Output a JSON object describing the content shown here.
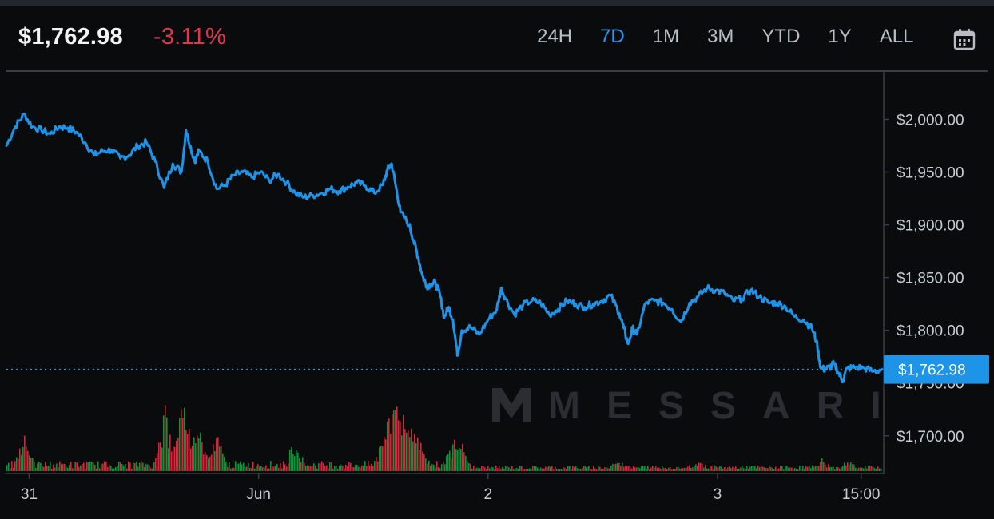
{
  "header": {
    "price": "$1,762.98",
    "change": "-3.11%",
    "change_color": "#e0364c",
    "ranges": [
      "24H",
      "7D",
      "1M",
      "3M",
      "YTD",
      "1Y",
      "ALL"
    ],
    "active_range": "7D",
    "calendar_icon": "calendar-icon"
  },
  "watermark": "MESSARI",
  "chart_data": {
    "type": "line",
    "line_color": "#1e94e8",
    "ylim": [
      1665,
      2045
    ],
    "y_ticks": [
      2000,
      1950,
      1900,
      1850,
      1800,
      1750,
      1700
    ],
    "y_tick_labels": [
      "$2,000.00",
      "$1,950.00",
      "$1,900.00",
      "$1,850.00",
      "$1,800.00",
      "$1,750.00",
      "$1,700.00"
    ],
    "current_price": 1762.98,
    "current_price_label": "$1,762.98",
    "x_tick_labels": [
      {
        "label": "31",
        "t": 0.026
      },
      {
        "label": "Jun",
        "t": 0.288
      },
      {
        "label": "2",
        "t": 0.55
      },
      {
        "label": "3",
        "t": 0.812
      },
      {
        "label": "15:00",
        "t": 0.976
      }
    ],
    "series": [
      {
        "values": [
          [
            0.0,
            1975
          ],
          [
            0.01,
            1993
          ],
          [
            0.02,
            2005
          ],
          [
            0.03,
            1993
          ],
          [
            0.04,
            1990
          ],
          [
            0.05,
            1986
          ],
          [
            0.06,
            1993
          ],
          [
            0.07,
            1992
          ],
          [
            0.08,
            1988
          ],
          [
            0.09,
            1978
          ],
          [
            0.1,
            1966
          ],
          [
            0.11,
            1970
          ],
          [
            0.12,
            1971
          ],
          [
            0.13,
            1963
          ],
          [
            0.14,
            1966
          ],
          [
            0.15,
            1975
          ],
          [
            0.16,
            1978
          ],
          [
            0.17,
            1960
          ],
          [
            0.18,
            1935
          ],
          [
            0.19,
            1958
          ],
          [
            0.2,
            1950
          ],
          [
            0.205,
            1990
          ],
          [
            0.21,
            1975
          ],
          [
            0.215,
            1960
          ],
          [
            0.22,
            1970
          ],
          [
            0.23,
            1960
          ],
          [
            0.24,
            1934
          ],
          [
            0.25,
            1938
          ],
          [
            0.26,
            1947
          ],
          [
            0.27,
            1950
          ],
          [
            0.28,
            1945
          ],
          [
            0.29,
            1950
          ],
          [
            0.3,
            1942
          ],
          [
            0.31,
            1948
          ],
          [
            0.32,
            1940
          ],
          [
            0.33,
            1930
          ],
          [
            0.34,
            1926
          ],
          [
            0.35,
            1928
          ],
          [
            0.36,
            1930
          ],
          [
            0.37,
            1934
          ],
          [
            0.38,
            1932
          ],
          [
            0.39,
            1936
          ],
          [
            0.4,
            1940
          ],
          [
            0.41,
            1937
          ],
          [
            0.42,
            1930
          ],
          [
            0.43,
            1938
          ],
          [
            0.435,
            1952
          ],
          [
            0.44,
            1958
          ],
          [
            0.445,
            1935
          ],
          [
            0.45,
            1912
          ],
          [
            0.46,
            1900
          ],
          [
            0.465,
            1885
          ],
          [
            0.47,
            1870
          ],
          [
            0.475,
            1852
          ],
          [
            0.48,
            1842
          ],
          [
            0.485,
            1844
          ],
          [
            0.49,
            1845
          ],
          [
            0.495,
            1834
          ],
          [
            0.5,
            1812
          ],
          [
            0.505,
            1822
          ],
          [
            0.51,
            1810
          ],
          [
            0.515,
            1776
          ],
          [
            0.52,
            1800
          ],
          [
            0.53,
            1803
          ],
          [
            0.54,
            1796
          ],
          [
            0.55,
            1810
          ],
          [
            0.56,
            1820
          ],
          [
            0.565,
            1840
          ],
          [
            0.57,
            1830
          ],
          [
            0.58,
            1815
          ],
          [
            0.59,
            1824
          ],
          [
            0.6,
            1828
          ],
          [
            0.61,
            1826
          ],
          [
            0.62,
            1815
          ],
          [
            0.63,
            1820
          ],
          [
            0.64,
            1828
          ],
          [
            0.65,
            1825
          ],
          [
            0.66,
            1822
          ],
          [
            0.67,
            1825
          ],
          [
            0.68,
            1828
          ],
          [
            0.69,
            1833
          ],
          [
            0.7,
            1816
          ],
          [
            0.705,
            1802
          ],
          [
            0.71,
            1787
          ],
          [
            0.715,
            1802
          ],
          [
            0.72,
            1796
          ],
          [
            0.73,
            1826
          ],
          [
            0.74,
            1828
          ],
          [
            0.75,
            1826
          ],
          [
            0.76,
            1820
          ],
          [
            0.77,
            1808
          ],
          [
            0.78,
            1826
          ],
          [
            0.79,
            1832
          ],
          [
            0.8,
            1840
          ],
          [
            0.81,
            1838
          ],
          [
            0.82,
            1835
          ],
          [
            0.83,
            1828
          ],
          [
            0.84,
            1830
          ],
          [
            0.85,
            1838
          ],
          [
            0.86,
            1832
          ],
          [
            0.87,
            1826
          ],
          [
            0.88,
            1826
          ],
          [
            0.89,
            1822
          ],
          [
            0.9,
            1813
          ],
          [
            0.91,
            1810
          ],
          [
            0.92,
            1802
          ],
          [
            0.925,
            1790
          ],
          [
            0.93,
            1764
          ],
          [
            0.935,
            1763
          ],
          [
            0.94,
            1765
          ],
          [
            0.945,
            1768
          ],
          [
            0.95,
            1760
          ],
          [
            0.955,
            1752
          ],
          [
            0.96,
            1764
          ],
          [
            0.97,
            1765
          ],
          [
            0.98,
            1764
          ],
          [
            0.99,
            1761
          ],
          [
            1.0,
            1763
          ]
        ]
      }
    ],
    "volume": {
      "up_color": "#17a34a",
      "down_color": "#e0364c"
    }
  }
}
